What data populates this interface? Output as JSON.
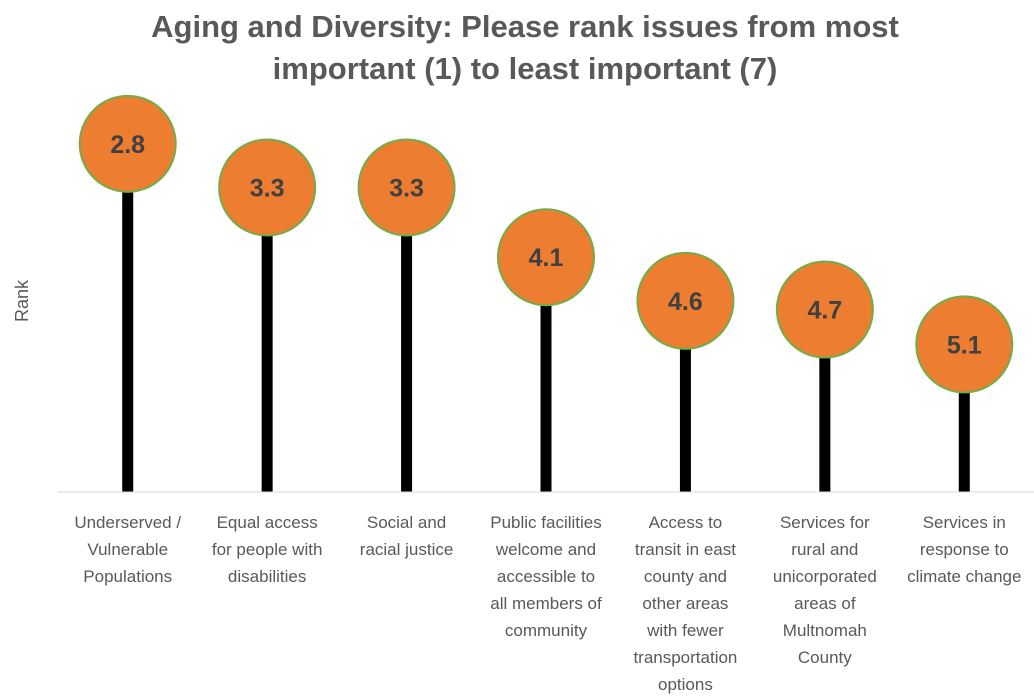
{
  "chart_data": {
    "type": "lollipop",
    "title": "Aging and Diversity: Please rank issues from most important (1) to least important (7)",
    "title_lines": [
      "Aging and Diversity: Please rank issues from most",
      "important (1) to least important (7)"
    ],
    "xlabel": "",
    "ylabel": "Rank",
    "categories": [
      "Underserved / Vulnerable Populations",
      "Equal access for people with disabilities",
      "Social and racial justice",
      "Public facilities welcome and accessible to all members of community",
      "Access to transit in east county and other areas with fewer transportation options",
      "Services for rural and unicorporated areas of Multnomah County",
      "Services in response to climate change"
    ],
    "category_lines": [
      [
        "Underserved /",
        "Vulnerable",
        "Populations"
      ],
      [
        "Equal access",
        "for people with",
        "disabilities"
      ],
      [
        "Social and",
        "racial justice"
      ],
      [
        "Public facilities",
        "welcome and",
        "accessible to",
        "all members of",
        "community"
      ],
      [
        "Access to",
        "transit in east",
        "county and",
        "other areas",
        "with fewer",
        "transportation",
        "options"
      ],
      [
        "Services for",
        "rural and",
        "unicorporated",
        "areas of",
        "Multnomah",
        "County"
      ],
      [
        "Services in",
        "response to",
        "climate change"
      ]
    ],
    "values": [
      2.8,
      3.3,
      3.3,
      4.1,
      4.6,
      4.7,
      5.1
    ],
    "value_labels": [
      "2.8",
      "3.3",
      "3.3",
      "4.1",
      "4.6",
      "4.7",
      "5.1"
    ],
    "y_axis_reversed": true,
    "grid": false,
    "legend": "none",
    "colors": {
      "marker": "#ED7D31",
      "marker_border": "#70AD47",
      "stem": "#000000",
      "axis": "#D9D9D9",
      "text": "#595959"
    }
  }
}
